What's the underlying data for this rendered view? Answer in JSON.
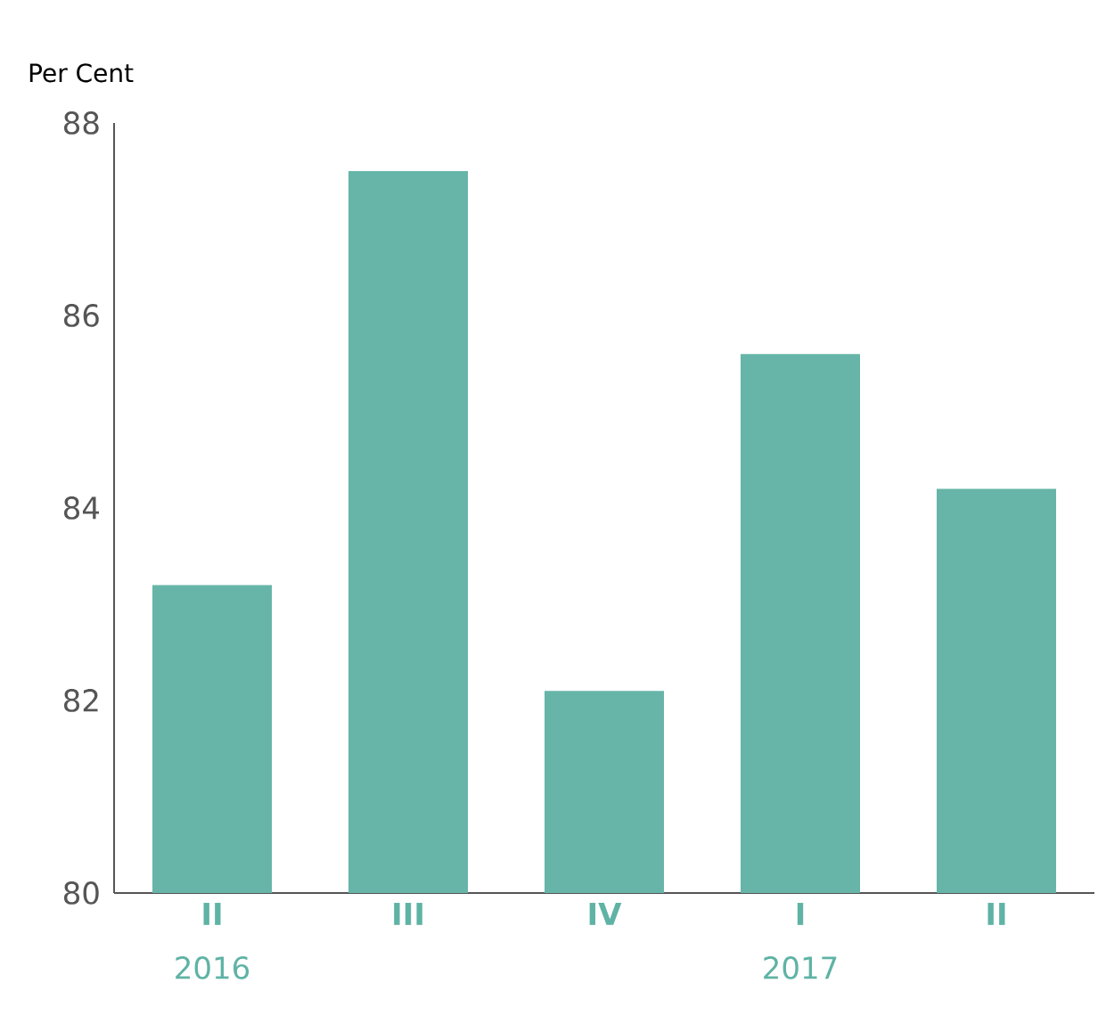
{
  "chart_data": {
    "type": "bar",
    "ylabel": "Per Cent",
    "categories": [
      "II",
      "III",
      "IV",
      "I",
      "II"
    ],
    "values": [
      83.2,
      87.5,
      82.1,
      85.6,
      84.2
    ],
    "color": "#66b5a8",
    "ylim": [
      80,
      88
    ],
    "yticks": [
      80,
      82,
      84,
      86,
      88
    ],
    "annotations": [
      "2016",
      "2017"
    ],
    "grid": false
  }
}
